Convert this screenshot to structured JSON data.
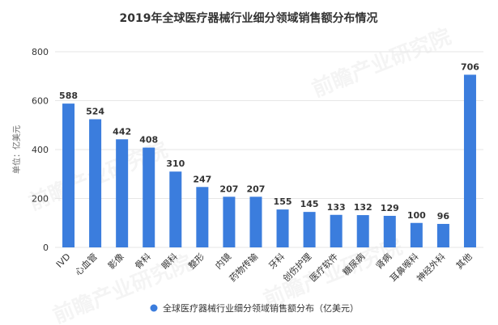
{
  "chart_data": {
    "type": "bar",
    "title": "2019年全球医疗器械行业细分领域销售额分布情况",
    "ylabel": "单位：亿美元",
    "xlabel": "",
    "ylim": [
      0,
      800
    ],
    "yticks": [
      0,
      200,
      400,
      600,
      800
    ],
    "categories": [
      "IVD",
      "心血管",
      "影像",
      "骨科",
      "眼科",
      "整形",
      "内镜",
      "药物传输",
      "牙科",
      "创伤护理",
      "医疗软件",
      "糖尿病",
      "肾病",
      "耳鼻喉科",
      "神经外科",
      "其他"
    ],
    "series": [
      {
        "name": "全球医疗器械行业细分领域销售额分布（亿美元）",
        "values": [
          588,
          524,
          442,
          408,
          310,
          247,
          207,
          207,
          155,
          145,
          133,
          132,
          129,
          100,
          96,
          706
        ]
      }
    ],
    "grid": true,
    "legend_position": "bottom",
    "bar_color": "#3b7ddd",
    "grid_color": "#e6e6e6"
  },
  "watermark": "前瞻产业研究院"
}
